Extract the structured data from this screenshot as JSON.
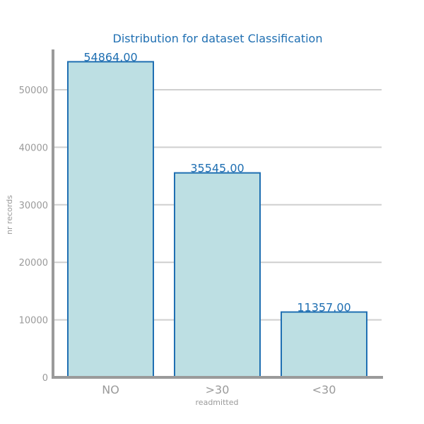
{
  "chart_data": {
    "type": "bar",
    "title": "Distribution for dataset Classification",
    "xlabel": "readmitted",
    "ylabel": "nr records",
    "categories": [
      "NO",
      ">30",
      "<30"
    ],
    "values": [
      54864.0,
      35545.0,
      11357.0
    ],
    "value_labels": [
      "54864.00",
      "35545.00",
      "11357.00"
    ],
    "ylim": [
      0,
      57000
    ],
    "yticks": [
      0,
      10000,
      20000,
      30000,
      40000,
      50000
    ],
    "ytick_labels": [
      "0",
      "10000",
      "20000",
      "30000",
      "40000",
      "50000"
    ],
    "grid": true,
    "colors": {
      "bar_fill": "#bddfe3",
      "bar_stroke": "#1f6fb2",
      "title": "#1f6fb2",
      "value_label": "#1f6fb2",
      "axis": "#9a9a9a",
      "grid": "#cfcfcf",
      "tick_text": "#9a9a9a"
    }
  }
}
